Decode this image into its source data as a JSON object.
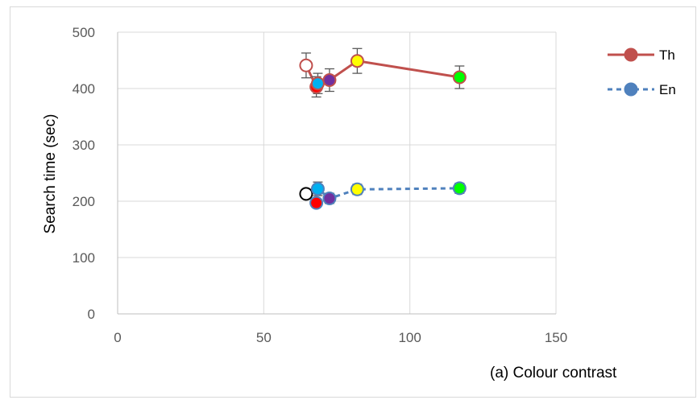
{
  "chart_data": {
    "type": "scatter",
    "title": "",
    "xlabel": "",
    "ylabel": "Search time (sec)",
    "caption": "(a) Colour contrast",
    "xlim": [
      0,
      150
    ],
    "ylim": [
      0,
      500
    ],
    "xticks": [
      0,
      50,
      100,
      150
    ],
    "yticks": [
      0,
      100,
      200,
      300,
      400,
      500
    ],
    "grid": true,
    "legend_position": "top-right",
    "series": [
      {
        "name": "Th",
        "line_color": "#c0504d",
        "line_style": "solid",
        "points": [
          {
            "x": 64.5,
            "y": 441,
            "err": 22,
            "fill": "#ffffff",
            "edge": "#c0504d"
          },
          {
            "x": 68,
            "y": 403,
            "err": 18,
            "fill": "#ff0000",
            "edge": "#c0504d"
          },
          {
            "x": 68.5,
            "y": 409,
            "err": 18,
            "fill": "#00b0f0",
            "edge": "#c0504d"
          },
          {
            "x": 72.5,
            "y": 415,
            "err": 20,
            "fill": "#7030a0",
            "edge": "#c0504d"
          },
          {
            "x": 82,
            "y": 449,
            "err": 22,
            "fill": "#ffff00",
            "edge": "#c0504d"
          },
          {
            "x": 117,
            "y": 420,
            "err": 20,
            "fill": "#00ff00",
            "edge": "#c0504d"
          }
        ]
      },
      {
        "name": "En",
        "line_color": "#4f81bd",
        "line_style": "dashed",
        "points": [
          {
            "x": 64.5,
            "y": 213,
            "err": 0,
            "fill": "#ffffff",
            "edge": "#000000"
          },
          {
            "x": 68,
            "y": 197,
            "err": 7,
            "fill": "#ff0000",
            "edge": "#4f81bd"
          },
          {
            "x": 68.5,
            "y": 222,
            "err": 12,
            "fill": "#00b0f0",
            "edge": "#4f81bd"
          },
          {
            "x": 72.5,
            "y": 205,
            "err": 9,
            "fill": "#7030a0",
            "edge": "#4f81bd"
          },
          {
            "x": 82,
            "y": 221,
            "err": 9,
            "fill": "#ffff00",
            "edge": "#4f81bd"
          },
          {
            "x": 117,
            "y": 223,
            "err": 9,
            "fill": "#00ff00",
            "edge": "#4f81bd"
          }
        ]
      }
    ]
  }
}
